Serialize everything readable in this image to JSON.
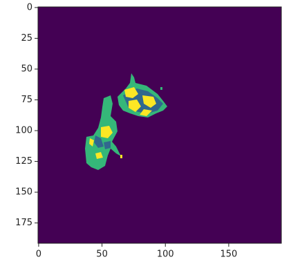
{
  "chart_data": {
    "type": "image",
    "xlim": [
      -0.5,
      191.5
    ],
    "ylim": [
      191.5,
      -0.5
    ],
    "xticks": [
      0,
      50,
      100,
      150
    ],
    "yticks": [
      0,
      25,
      50,
      75,
      100,
      125,
      150,
      175
    ],
    "colors": [
      "#440154",
      "#31688e",
      "#35b779",
      "#fde725"
    ]
  }
}
